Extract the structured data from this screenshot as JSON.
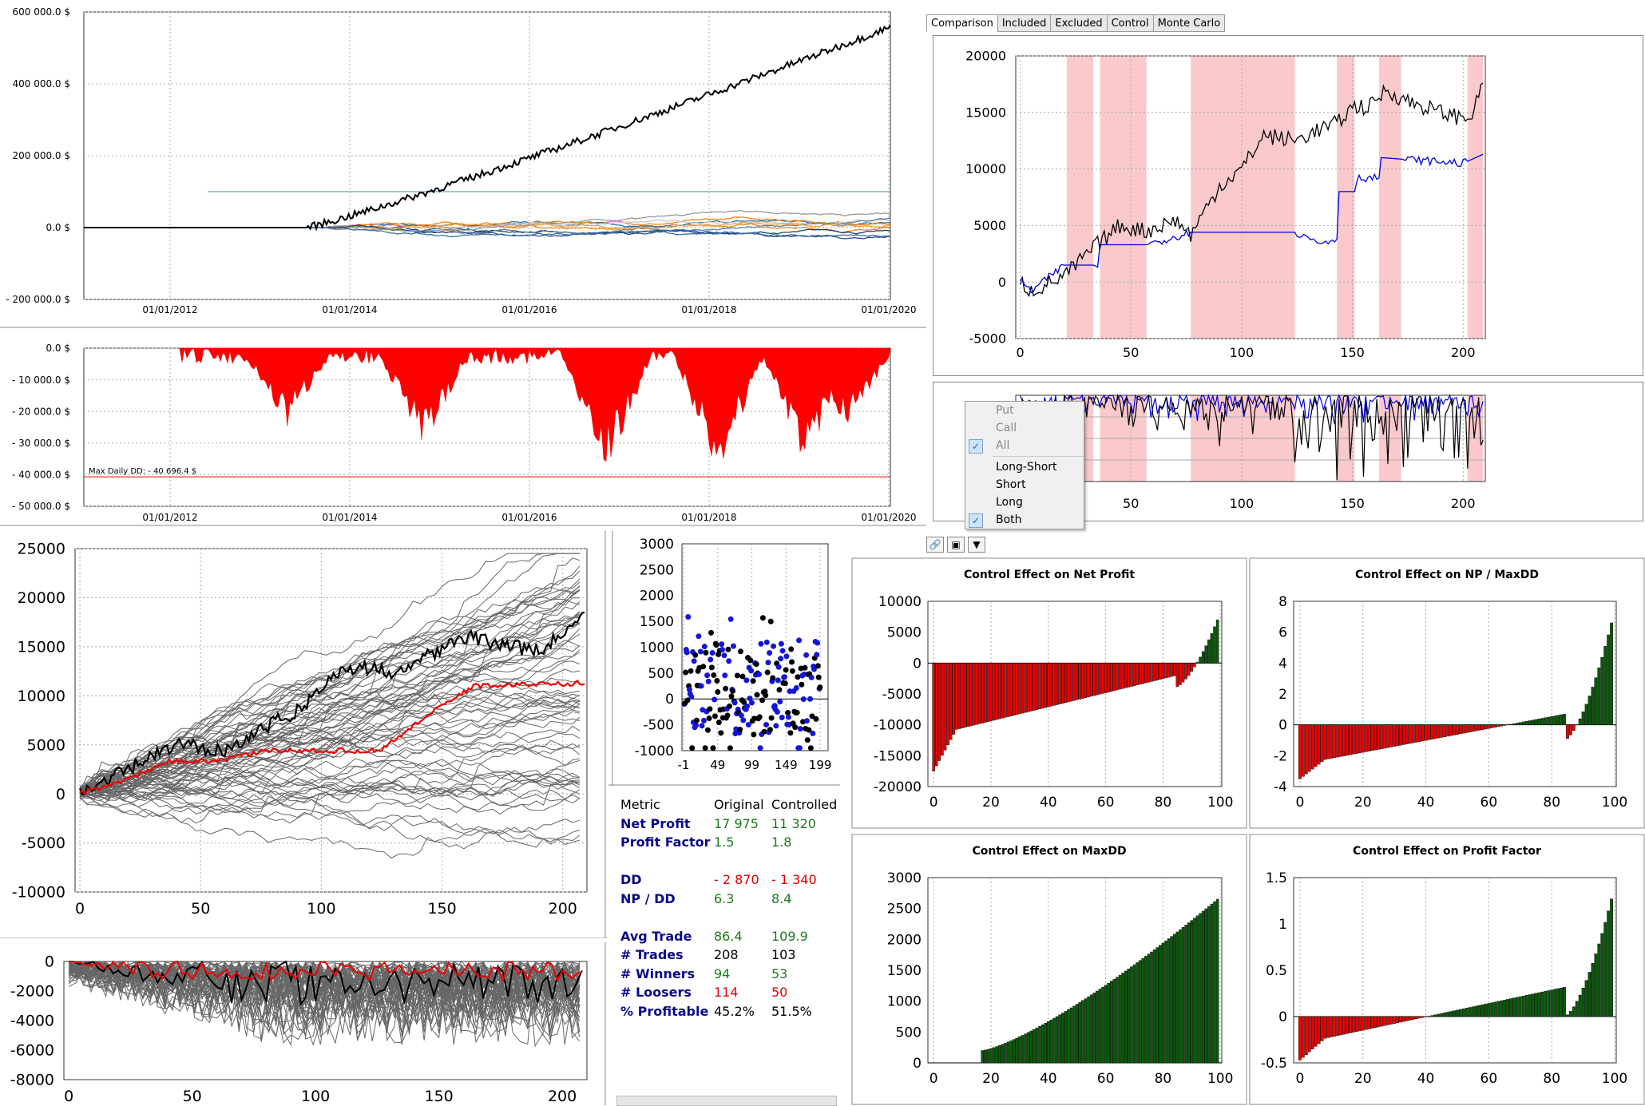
{
  "equity_top": {
    "y_ticks": [
      "600 000.0 $",
      "400 000.0 $",
      "200 000.0 $",
      "0.0 $",
      "- 200 000.0 $"
    ],
    "x_ticks": [
      "01/01/2012",
      "01/01/2014",
      "01/01/2016",
      "01/01/2018",
      "01/01/2020"
    ]
  },
  "drawdown_top": {
    "y_ticks": [
      "0.0 $",
      "- 10 000.0 $",
      "- 20 000.0 $",
      "- 30 000.0 $",
      "- 40 000.0 $",
      "- 50 000.0 $"
    ],
    "x_ticks": [
      "01/01/2012",
      "01/01/2014",
      "01/01/2016",
      "01/01/2018",
      "01/01/2020"
    ],
    "annotation": "Max Daily DD: - 40 696.4 $"
  },
  "tabs": [
    "Comparison",
    "Included",
    "Excluded",
    "Control",
    "Monte Carlo"
  ],
  "comparison": {
    "y_ticks": [
      "20000",
      "15000",
      "10000",
      "5000",
      "0",
      "-5000"
    ],
    "x_ticks": [
      "0",
      "50",
      "100",
      "150",
      "200"
    ]
  },
  "comparison_dd": {
    "y_ticks": [
      "0"
    ],
    "x_ticks": [
      "50",
      "100",
      "150",
      "200"
    ]
  },
  "menu": {
    "put": "Put",
    "call": "Call",
    "all": "All",
    "long_short": "Long-Short",
    "short": "Short",
    "long": "Long",
    "both": "Both"
  },
  "montecarlo": {
    "y_ticks": [
      "25000",
      "20000",
      "15000",
      "10000",
      "5000",
      "0",
      "-5000",
      "-10000"
    ],
    "x_ticks": [
      "0",
      "50",
      "100",
      "150",
      "200"
    ]
  },
  "montecarlo_dd": {
    "y_ticks": [
      "0",
      "-2000",
      "-4000",
      "-6000",
      "-8000"
    ],
    "x_ticks": [
      "0",
      "50",
      "100",
      "150",
      "200"
    ]
  },
  "scatter": {
    "y_ticks": [
      "3000",
      "2500",
      "2000",
      "1500",
      "1000",
      "500",
      "0",
      "-500",
      "-1000"
    ],
    "x_ticks": [
      "-1",
      "49",
      "99",
      "149",
      "199"
    ]
  },
  "metrics": {
    "header": [
      "Metric",
      "Original",
      "Controlled"
    ],
    "rows": [
      {
        "label": "Net Profit",
        "orig": "17 975",
        "ctrl": "11 320",
        "oc": "pos",
        "cc": "pos"
      },
      {
        "label": "Profit Factor",
        "orig": "1.5",
        "ctrl": "1.8",
        "oc": "pos",
        "cc": "pos"
      },
      {
        "label": "",
        "orig": "",
        "ctrl": "",
        "oc": "neu",
        "cc": "neu"
      },
      {
        "label": "DD",
        "orig": "- 2 870",
        "ctrl": "- 1 340",
        "oc": "neg",
        "cc": "neg"
      },
      {
        "label": "NP / DD",
        "orig": "6.3",
        "ctrl": "8.4",
        "oc": "pos",
        "cc": "pos"
      },
      {
        "label": "",
        "orig": "",
        "ctrl": "",
        "oc": "neu",
        "cc": "neu"
      },
      {
        "label": "Avg Trade",
        "orig": "86.4",
        "ctrl": "109.9",
        "oc": "pos",
        "cc": "pos"
      },
      {
        "label": "# Trades",
        "orig": "208",
        "ctrl": "103",
        "oc": "neu",
        "cc": "neu"
      },
      {
        "label": "# Winners",
        "orig": "94",
        "ctrl": "53",
        "oc": "pos",
        "cc": "pos"
      },
      {
        "label": "# Loosers",
        "orig": "114",
        "ctrl": "50",
        "oc": "neg",
        "cc": "neg"
      },
      {
        "label": "% Profitable",
        "orig": "45.2%",
        "ctrl": "51.5%",
        "oc": "neu",
        "cc": "neu"
      }
    ]
  },
  "chart_data": [
    {
      "type": "bar",
      "title": "Control Effect on Net Profit",
      "ylim": [
        -20000,
        10000
      ],
      "y_ticks": [
        "10000",
        "5000",
        "0",
        "-5000",
        "-10000",
        "-15000",
        "-20000"
      ],
      "x_ticks": [
        "0",
        "20",
        "40",
        "60",
        "80",
        "100"
      ],
      "start": -17500,
      "mid": -4000,
      "end": 7000,
      "cross": 94
    },
    {
      "type": "bar",
      "title": "Control Effect on NP / MaxDD",
      "ylim": [
        -4,
        8
      ],
      "y_ticks": [
        "8",
        "6",
        "4",
        "2",
        "0",
        "-2",
        "-4"
      ],
      "x_ticks": [
        "0",
        "20",
        "40",
        "60",
        "80",
        "100"
      ],
      "start": -3.5,
      "mid": -1,
      "end": 6.6,
      "cross": 80
    },
    {
      "type": "bar",
      "title": "Control Effect on MaxDD",
      "ylim": [
        0,
        3000
      ],
      "y_ticks": [
        "3000",
        "2500",
        "2000",
        "1500",
        "1000",
        "500",
        "0"
      ],
      "x_ticks": [
        "0",
        "20",
        "40",
        "60",
        "80",
        "100"
      ],
      "start": 200,
      "mid": 1200,
      "end": 2650,
      "cross": 17
    },
    {
      "type": "bar",
      "title": "Control Effect on Profit Factor",
      "ylim": [
        -0.5,
        1.5
      ],
      "y_ticks": [
        "1.5",
        "1",
        "0.5",
        "0",
        "-0.5"
      ],
      "x_ticks": [
        "0",
        "20",
        "40",
        "60",
        "80",
        "100"
      ],
      "start": -0.47,
      "mid": 0,
      "end": 1.27,
      "cross": 45
    }
  ]
}
